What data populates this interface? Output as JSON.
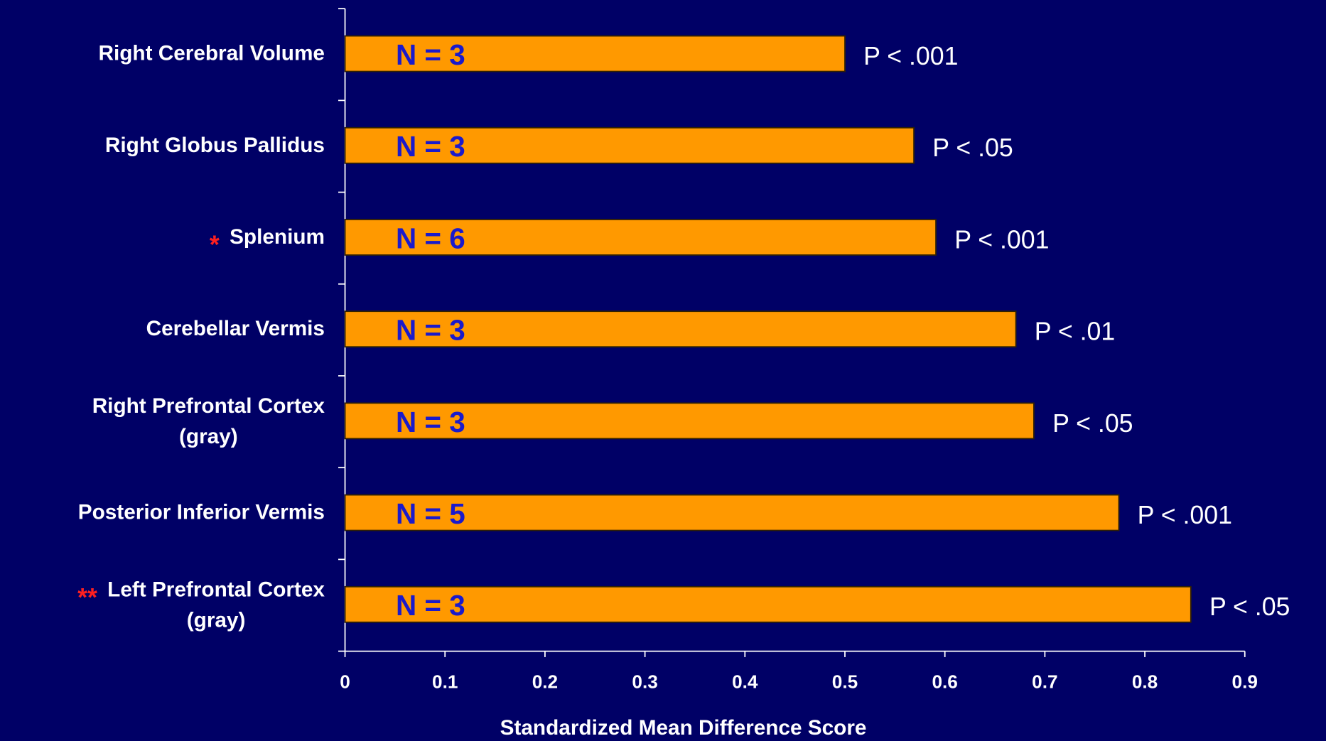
{
  "chart_data": {
    "type": "bar",
    "orientation": "horizontal",
    "categories": [
      [
        "Right Cerebral Volume"
      ],
      [
        "Right Globus Pallidus"
      ],
      [
        "Splenium"
      ],
      [
        "Cerebellar Vermis"
      ],
      [
        "Right Prefrontal Cortex",
        "(gray)"
      ],
      [
        "Posterior Inferior Vermis"
      ],
      [
        "Left Prefrontal Cortex",
        "(gray)"
      ]
    ],
    "markers": [
      null,
      null,
      "*",
      null,
      null,
      null,
      "**"
    ],
    "values": [
      0.5,
      0.569,
      0.591,
      0.671,
      0.689,
      0.774,
      0.846
    ],
    "n_labels": [
      "N = 3",
      "N = 3",
      "N = 6",
      "N = 3",
      "N = 3",
      "N = 5",
      "N = 3"
    ],
    "p_labels": [
      "P < .001",
      "P < .05",
      "P < .001",
      "P < .01",
      "P < .05",
      "P < .001",
      "P < .05"
    ],
    "color": "#ff9900",
    "xlim": [
      0,
      0.9
    ],
    "xticks": [
      0,
      0.1,
      0.2,
      0.3,
      0.4,
      0.5,
      0.6,
      0.7,
      0.8,
      0.9
    ],
    "xlabel": "Standardized Mean Difference Score"
  }
}
